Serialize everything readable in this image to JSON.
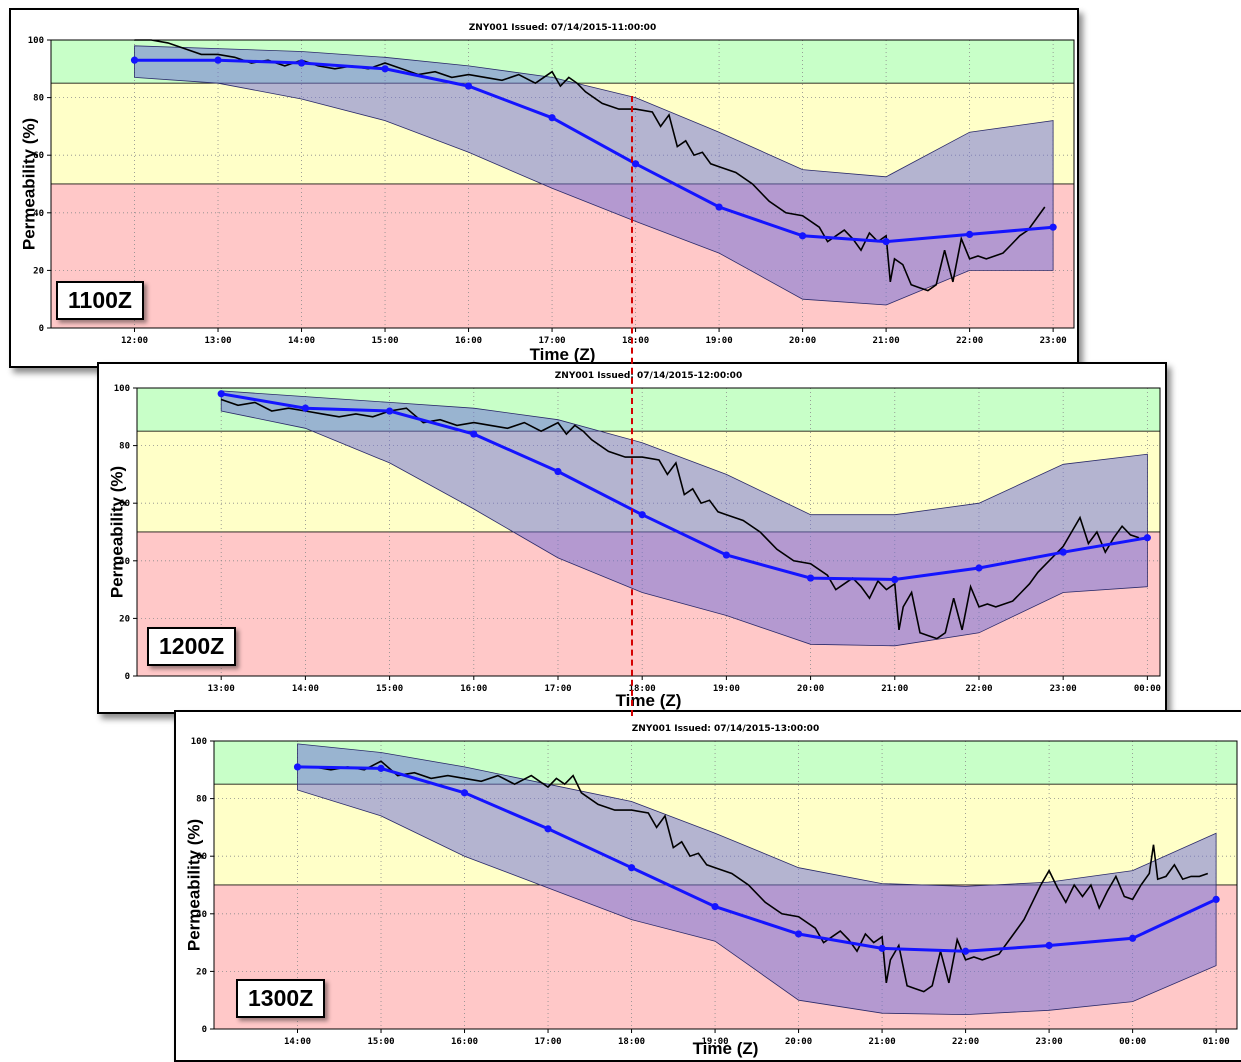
{
  "colors": {
    "zone_green": "#c8ffc8",
    "zone_yellow": "#ffffc8",
    "zone_red": "#ffc8c8",
    "band_fill": "#6a6ad8",
    "forecast_line": "#1414ff",
    "observed_line": "#000000",
    "reference_line": "#d40000"
  },
  "reference_time": "18:00",
  "chart_data": [
    {
      "type": "line",
      "title": "ZNY001  Issued: 07/14/2015-11:00:00",
      "tag": "1100Z",
      "xlabel": "Time (Z)",
      "ylabel": "Permeability (%)",
      "ylim": [
        0,
        100
      ],
      "xlim": [
        11.0,
        23.25
      ],
      "x_ticks": [
        12,
        13,
        14,
        15,
        16,
        17,
        18,
        19,
        20,
        21,
        22,
        23
      ],
      "x_tick_labels": [
        "12:00",
        "13:00",
        "14:00",
        "15:00",
        "16:00",
        "17:00",
        "18:00",
        "19:00",
        "20:00",
        "21:00",
        "22:00",
        "23:00"
      ],
      "y_ticks": [
        0,
        20,
        40,
        60,
        80,
        100
      ],
      "y_tick_labels": [
        "0",
        "20",
        "40",
        "60",
        "80",
        "100"
      ],
      "zones": [
        {
          "name": "green",
          "from": 85,
          "to": 100
        },
        {
          "name": "yellow",
          "from": 50,
          "to": 85
        },
        {
          "name": "red",
          "from": 0,
          "to": 50
        }
      ],
      "series": [
        {
          "role": "forecast",
          "x": [
            12,
            13,
            14,
            15,
            16,
            17,
            18,
            19,
            20,
            21,
            22,
            23
          ],
          "y": [
            93,
            93,
            92,
            90,
            84,
            73,
            57,
            42,
            32,
            30,
            32.5,
            35
          ]
        },
        {
          "role": "band_upper",
          "x": [
            12,
            13,
            14,
            15,
            16,
            17,
            18,
            19,
            20,
            21,
            22,
            23
          ],
          "y": [
            98,
            97,
            96,
            94,
            91,
            87,
            80,
            68,
            55,
            52.5,
            68,
            72
          ]
        },
        {
          "role": "band_lower",
          "x": [
            12,
            13,
            14,
            15,
            16,
            17,
            18,
            19,
            20,
            21,
            22,
            23
          ],
          "y": [
            87,
            85,
            79.5,
            72,
            61,
            48.5,
            37,
            26,
            10,
            8,
            20,
            20
          ]
        },
        {
          "role": "observed",
          "x": [
            12.0,
            12.2,
            12.4,
            12.6,
            12.8,
            13.0,
            13.2,
            13.4,
            13.6,
            13.8,
            14.0,
            14.2,
            14.4,
            14.6,
            14.8,
            15.0,
            15.2,
            15.4,
            15.6,
            15.8,
            16.0,
            16.2,
            16.4,
            16.6,
            16.8,
            17.0,
            17.1,
            17.2,
            17.3,
            17.4,
            17.6,
            17.8,
            18.0,
            18.2,
            18.3,
            18.4,
            18.5,
            18.6,
            18.7,
            18.8,
            18.9,
            19.0,
            19.2,
            19.4,
            19.6,
            19.8,
            20.0,
            20.2,
            20.3,
            20.4,
            20.5,
            20.6,
            20.7,
            20.8,
            20.9,
            21.0,
            21.05,
            21.1,
            21.2,
            21.3,
            21.4,
            21.5,
            21.6,
            21.7,
            21.8,
            21.9,
            22.0,
            22.1,
            22.2,
            22.3,
            22.4,
            22.5,
            22.6,
            22.7,
            22.8,
            22.9
          ],
          "y": [
            100,
            100,
            99,
            97,
            95,
            95,
            94,
            92,
            93,
            91,
            93,
            91,
            90,
            91,
            90,
            92,
            90,
            88,
            89,
            87,
            88,
            87,
            86,
            88,
            85,
            89,
            84,
            87,
            85,
            82,
            78,
            76,
            76,
            75,
            70,
            74,
            63,
            65,
            60,
            61,
            57,
            56,
            54,
            50,
            44,
            40,
            39,
            35,
            30,
            32,
            34,
            31,
            27,
            33,
            30,
            32,
            16,
            24,
            22,
            15,
            14,
            13,
            15,
            27,
            16,
            31,
            24,
            25,
            24,
            25,
            26,
            29,
            32,
            34,
            38,
            42
          ]
        }
      ]
    },
    {
      "type": "line",
      "title": "ZNY001  Issued: 07/14/2015-12:00:00",
      "tag": "1200Z",
      "xlabel": "Time (Z)",
      "ylabel": "Permeability (%)",
      "ylim": [
        0,
        100
      ],
      "xlim": [
        12.0,
        24.15
      ],
      "x_ticks": [
        13,
        14,
        15,
        16,
        17,
        18,
        19,
        20,
        21,
        22,
        23,
        24
      ],
      "x_tick_labels": [
        "13:00",
        "14:00",
        "15:00",
        "16:00",
        "17:00",
        "18:00",
        "19:00",
        "20:00",
        "21:00",
        "22:00",
        "23:00",
        "00:00"
      ],
      "y_ticks": [
        0,
        20,
        40,
        60,
        80,
        100
      ],
      "y_tick_labels": [
        "0",
        "20",
        "40",
        "60",
        "80",
        "100"
      ],
      "zones": [
        {
          "name": "green",
          "from": 85,
          "to": 100
        },
        {
          "name": "yellow",
          "from": 50,
          "to": 85
        },
        {
          "name": "red",
          "from": 0,
          "to": 50
        }
      ],
      "series": [
        {
          "role": "forecast",
          "x": [
            13,
            14,
            15,
            16,
            17,
            18,
            19,
            20,
            21,
            22,
            23,
            24
          ],
          "y": [
            98,
            93,
            92,
            84,
            71,
            56,
            42,
            34,
            33.5,
            37.5,
            43,
            48
          ]
        },
        {
          "role": "band_upper",
          "x": [
            13,
            14,
            15,
            16,
            17,
            18,
            19,
            20,
            21,
            22,
            23,
            24
          ],
          "y": [
            99,
            97,
            95,
            93,
            89,
            81,
            70,
            56,
            56,
            60,
            73.5,
            77
          ]
        },
        {
          "role": "band_lower",
          "x": [
            13,
            14,
            15,
            16,
            17,
            18,
            19,
            20,
            21,
            22,
            23,
            24
          ],
          "y": [
            92,
            86,
            74,
            58,
            41,
            29,
            21,
            11,
            10.5,
            15,
            29,
            31
          ]
        },
        {
          "role": "observed",
          "x": [
            13.0,
            13.2,
            13.4,
            13.6,
            13.8,
            14.0,
            14.2,
            14.4,
            14.6,
            14.8,
            15.0,
            15.2,
            15.4,
            15.6,
            15.8,
            16.0,
            16.2,
            16.4,
            16.6,
            16.8,
            17.0,
            17.1,
            17.2,
            17.3,
            17.4,
            17.6,
            17.8,
            18.0,
            18.2,
            18.3,
            18.4,
            18.5,
            18.6,
            18.7,
            18.8,
            18.9,
            19.0,
            19.2,
            19.4,
            19.6,
            19.8,
            20.0,
            20.2,
            20.3,
            20.4,
            20.5,
            20.6,
            20.7,
            20.8,
            20.9,
            21.0,
            21.05,
            21.1,
            21.2,
            21.3,
            21.4,
            21.5,
            21.6,
            21.7,
            21.8,
            21.9,
            22.0,
            22.1,
            22.2,
            22.3,
            22.4,
            22.5,
            22.6,
            22.7,
            22.8,
            22.9,
            23.0,
            23.1,
            23.2,
            23.3,
            23.4,
            23.5,
            23.6,
            23.7,
            23.8,
            23.9
          ],
          "y": [
            96,
            94,
            95,
            92,
            93,
            92,
            91,
            90,
            91,
            90,
            92,
            93,
            88,
            89,
            87,
            88,
            87,
            86,
            88,
            85,
            88,
            84,
            87,
            85,
            82,
            78,
            76,
            76,
            75,
            70,
            74,
            63,
            65,
            60,
            61,
            57,
            56,
            54,
            50,
            44,
            40,
            39,
            35,
            30,
            32,
            34,
            31,
            27,
            33,
            30,
            32,
            16,
            24,
            29,
            15,
            14,
            13,
            15,
            27,
            16,
            31,
            24,
            25,
            24,
            25,
            26,
            29,
            32,
            36,
            39,
            42,
            45,
            50,
            55,
            46,
            50,
            43,
            48,
            52,
            49,
            48
          ]
        }
      ]
    },
    {
      "type": "line",
      "title": "ZNY001  Issued: 07/14/2015-13:00:00",
      "tag": "1300Z",
      "xlabel": "Time (Z)",
      "ylabel": "Permeability (%)",
      "ylim": [
        0,
        100
      ],
      "xlim": [
        13.0,
        25.25
      ],
      "x_ticks": [
        14,
        15,
        16,
        17,
        18,
        19,
        20,
        21,
        22,
        23,
        24,
        25
      ],
      "x_tick_labels": [
        "14:00",
        "15:00",
        "16:00",
        "17:00",
        "18:00",
        "19:00",
        "20:00",
        "21:00",
        "22:00",
        "23:00",
        "00:00",
        "01:00"
      ],
      "y_ticks": [
        0,
        20,
        40,
        60,
        80,
        100
      ],
      "y_tick_labels": [
        "0",
        "20",
        "40",
        "60",
        "80",
        "100"
      ],
      "zones": [
        {
          "name": "green",
          "from": 85,
          "to": 100
        },
        {
          "name": "yellow",
          "from": 50,
          "to": 85
        },
        {
          "name": "red",
          "from": 0,
          "to": 50
        }
      ],
      "series": [
        {
          "role": "forecast",
          "x": [
            14,
            15,
            16,
            17,
            18,
            19,
            20,
            21,
            22,
            23,
            24,
            25
          ],
          "y": [
            91,
            90.5,
            82,
            69.5,
            56,
            42.5,
            33,
            28,
            27,
            29,
            31.5,
            45
          ]
        },
        {
          "role": "band_upper",
          "x": [
            14,
            15,
            16,
            17,
            18,
            19,
            20,
            21,
            22,
            23,
            24,
            25
          ],
          "y": [
            99,
            96,
            91,
            85,
            79,
            68,
            56,
            50.5,
            49.5,
            51,
            55,
            68
          ]
        },
        {
          "role": "band_lower",
          "x": [
            14,
            15,
            16,
            17,
            18,
            19,
            20,
            21,
            22,
            23,
            24,
            25
          ],
          "y": [
            83,
            74,
            60,
            49,
            38,
            30.5,
            10,
            5.5,
            5,
            6.5,
            9.5,
            22
          ]
        },
        {
          "role": "observed",
          "x": [
            14.0,
            14.2,
            14.4,
            14.6,
            14.8,
            15.0,
            15.2,
            15.4,
            15.6,
            15.8,
            16.0,
            16.2,
            16.4,
            16.6,
            16.8,
            17.0,
            17.1,
            17.2,
            17.3,
            17.4,
            17.6,
            17.8,
            18.0,
            18.2,
            18.3,
            18.4,
            18.5,
            18.6,
            18.7,
            18.8,
            18.9,
            19.0,
            19.2,
            19.4,
            19.6,
            19.8,
            20.0,
            20.2,
            20.3,
            20.4,
            20.5,
            20.6,
            20.7,
            20.8,
            20.9,
            21.0,
            21.05,
            21.1,
            21.2,
            21.3,
            21.4,
            21.5,
            21.6,
            21.7,
            21.8,
            21.9,
            22.0,
            22.1,
            22.2,
            22.3,
            22.4,
            22.5,
            22.6,
            22.7,
            22.8,
            22.9,
            23.0,
            23.1,
            23.2,
            23.3,
            23.4,
            23.5,
            23.6,
            23.7,
            23.8,
            23.9,
            24.0,
            24.1,
            24.2,
            24.25,
            24.3,
            24.4,
            24.5,
            24.6,
            24.7,
            24.8,
            24.9
          ],
          "y": [
            91,
            91,
            90,
            91,
            90,
            93,
            88,
            89,
            87,
            88,
            87,
            86,
            88,
            85,
            88,
            84,
            87,
            85,
            88,
            82,
            78,
            76,
            76,
            75,
            70,
            74,
            63,
            65,
            60,
            61,
            57,
            56,
            54,
            50,
            44,
            40,
            39,
            35,
            30,
            32,
            34,
            31,
            27,
            33,
            30,
            32,
            16,
            24,
            29,
            15,
            14,
            13,
            15,
            27,
            16,
            31,
            24,
            25,
            24,
            25,
            26,
            30,
            34,
            38,
            44,
            50,
            55,
            49,
            44,
            50,
            46,
            50,
            42,
            48,
            53,
            46,
            45,
            50,
            54,
            64,
            52,
            53,
            57,
            52,
            53,
            53,
            54
          ]
        }
      ]
    }
  ]
}
